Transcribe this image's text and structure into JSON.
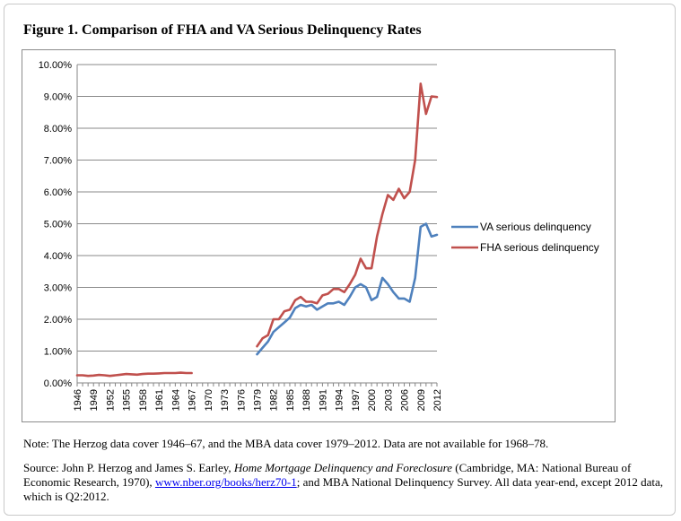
{
  "figure_title": "Figure 1. Comparison of FHA and VA Serious Delinquency Rates",
  "note": "Note: The Herzog data cover 1946–67, and the MBA data cover 1979–2012. Data are not available for 1968–78.",
  "source": {
    "prefix": "Source: John P. Herzog and James S. Earley, ",
    "book_title": "Home Mortgage Delinquency and Foreclosure",
    "middle": " (Cambridge, MA: National Bureau of Economic Research, 1970), ",
    "link_text": "www.nber.org/books/herz70-1",
    "suffix": "; and MBA National Delinquency Survey. All data year-end, except 2012 data, which is Q2:2012."
  },
  "chart_data": {
    "type": "line",
    "title": "",
    "xlabel": "",
    "ylabel": "",
    "ylim": [
      0,
      10
    ],
    "y_ticks": [
      "0.00%",
      "1.00%",
      "2.00%",
      "3.00%",
      "4.00%",
      "5.00%",
      "6.00%",
      "7.00%",
      "8.00%",
      "9.00%",
      "10.00%"
    ],
    "x_tick_labels": [
      "1946",
      "1949",
      "1952",
      "1955",
      "1958",
      "1961",
      "1964",
      "1967",
      "1970",
      "1973",
      "1976",
      "1979",
      "1982",
      "1985",
      "1988",
      "1991",
      "1994",
      "1997",
      "2000",
      "2003",
      "2006",
      "2009",
      "2012"
    ],
    "x_start": 1946,
    "x_end": 2012,
    "grid": "horizontal",
    "legend_position": "right",
    "series": [
      {
        "name": "VA serious delinquency",
        "color": "#4f81bd",
        "segments": [
          {
            "x": [
              1979,
              1980,
              1981,
              1982,
              1983,
              1984,
              1985,
              1986,
              1987,
              1988,
              1989,
              1990,
              1991,
              1992,
              1993,
              1994,
              1995,
              1996,
              1997,
              1998,
              1999,
              2000,
              2001,
              2002,
              2003,
              2004,
              2005,
              2006,
              2007,
              2008,
              2009,
              2010,
              2011,
              2012
            ],
            "values": [
              0.9,
              1.1,
              1.3,
              1.6,
              1.75,
              1.9,
              2.05,
              2.35,
              2.45,
              2.4,
              2.45,
              2.3,
              2.4,
              2.5,
              2.5,
              2.55,
              2.45,
              2.7,
              3.0,
              3.1,
              3.0,
              2.6,
              2.7,
              3.3,
              3.1,
              2.85,
              2.65,
              2.65,
              2.55,
              3.3,
              4.9,
              5.0,
              4.6,
              4.65
            ]
          }
        ]
      },
      {
        "name": "FHA serious delinquency",
        "color": "#c0504d",
        "segments": [
          {
            "x": [
              1946,
              1947,
              1948,
              1949,
              1950,
              1951,
              1952,
              1953,
              1954,
              1955,
              1956,
              1957,
              1958,
              1959,
              1960,
              1961,
              1962,
              1963,
              1964,
              1965,
              1966,
              1967
            ],
            "values": [
              0.24,
              0.24,
              0.22,
              0.23,
              0.25,
              0.24,
              0.22,
              0.24,
              0.26,
              0.28,
              0.27,
              0.26,
              0.28,
              0.29,
              0.29,
              0.3,
              0.31,
              0.31,
              0.31,
              0.32,
              0.31,
              0.31
            ]
          },
          {
            "x": [
              1979,
              1980,
              1981,
              1982,
              1983,
              1984,
              1985,
              1986,
              1987,
              1988,
              1989,
              1990,
              1991,
              1992,
              1993,
              1994,
              1995,
              1996,
              1997,
              1998,
              1999,
              2000,
              2001,
              2002,
              2003,
              2004,
              2005,
              2006,
              2007,
              2008,
              2009,
              2010,
              2011,
              2012
            ],
            "values": [
              1.15,
              1.4,
              1.5,
              2.0,
              2.0,
              2.25,
              2.3,
              2.6,
              2.7,
              2.55,
              2.55,
              2.5,
              2.75,
              2.8,
              2.95,
              2.95,
              2.85,
              3.1,
              3.4,
              3.9,
              3.6,
              3.6,
              4.6,
              5.3,
              5.9,
              5.75,
              6.1,
              5.8,
              6.0,
              7.0,
              9.4,
              8.45,
              9.0,
              8.98
            ]
          }
        ]
      }
    ]
  }
}
